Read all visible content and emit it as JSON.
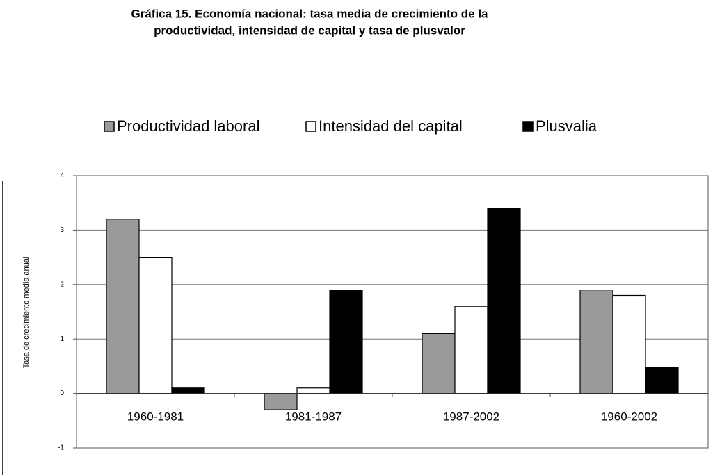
{
  "chart_data": {
    "type": "bar",
    "title": [
      "Gráfica 15. Economía nacional:  tasa media de crecimiento de la",
      "productividad, intensidad de capital y tasa de plusvalor"
    ],
    "y_label": "Tasa de crecimiento media anual",
    "categories": [
      "1960-1981",
      "1981-1987",
      "1987-2002",
      "1960-2002"
    ],
    "series": [
      {
        "name": "Productividad laboral",
        "color": "#9a9a9a",
        "values": [
          3.2,
          -0.3,
          1.1,
          1.9
        ]
      },
      {
        "name": "Intensidad del capital",
        "color": "#ffffff",
        "values": [
          2.5,
          0.1,
          1.6,
          1.8
        ]
      },
      {
        "name": "Plusvalia",
        "color": "#000000",
        "values": [
          0.1,
          1.9,
          3.4,
          0.48
        ]
      }
    ],
    "ylim": [
      -1,
      4
    ],
    "yticks": [
      -1,
      0,
      1,
      2,
      3,
      4
    ],
    "grid": true,
    "legend": "top"
  }
}
